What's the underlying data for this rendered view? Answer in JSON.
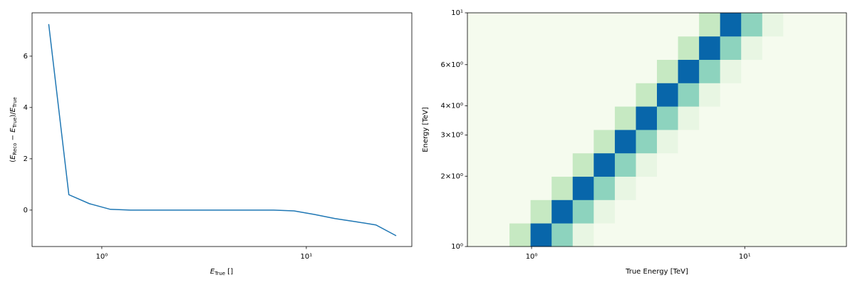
{
  "chart_data": [
    {
      "type": "line",
      "log_x": true,
      "x": [
        0.55,
        0.69,
        0.87,
        1.1,
        1.38,
        1.74,
        2.19,
        2.76,
        3.47,
        4.37,
        5.5,
        6.92,
        8.71,
        10.96,
        13.8,
        17.4,
        21.9,
        27.5
      ],
      "values": [
        7.25,
        0.6,
        0.25,
        0.03,
        0,
        0,
        0,
        0,
        0,
        0,
        0,
        0,
        -0.03,
        -0.17,
        -0.33,
        -0.45,
        -0.58,
        -1.0
      ],
      "color": "#1f77b4",
      "xlim": [
        0.456,
        32.8
      ],
      "xticks": [
        {
          "value": 1,
          "label": "10⁰"
        },
        {
          "value": 10,
          "label": "10¹"
        }
      ],
      "ylim": [
        -1.42,
        7.69
      ],
      "yticks": [
        0,
        2,
        4,
        6
      ],
      "xlabel": [
        "E",
        "True",
        " []"
      ],
      "ylabel": [
        "(",
        "E",
        "Reco",
        " − ",
        "E",
        "True",
        ")/",
        "E",
        "True"
      ]
    },
    {
      "type": "heatmap",
      "log_x": true,
      "log_y": true,
      "colormap": "GnBu",
      "zlim": [
        0,
        1
      ],
      "x_edges": [
        0.5,
        0.628,
        0.788,
        0.989,
        1.242,
        1.559,
        1.957,
        2.458,
        3.086,
        3.873,
        4.863,
        6.105,
        7.663,
        9.62,
        12.08,
        15.16,
        19.03,
        23.89,
        30.0
      ],
      "y_edges": [
        1,
        1.259,
        1.585,
        1.995,
        2.512,
        3.162,
        3.981,
        5.012,
        6.31,
        7.943,
        10
      ],
      "values": [
        [
          0.01,
          0.01,
          0.27,
          0.88,
          0.45,
          0.08,
          0.01,
          0.01,
          0.01,
          0.01,
          0.01,
          0.01,
          0.01,
          0.01,
          0.01,
          0.01,
          0.01,
          0.01
        ],
        [
          0.01,
          0.01,
          0.01,
          0.27,
          0.88,
          0.45,
          0.08,
          0.01,
          0.01,
          0.01,
          0.01,
          0.01,
          0.01,
          0.01,
          0.01,
          0.01,
          0.01,
          0.01
        ],
        [
          0.01,
          0.01,
          0.01,
          0.01,
          0.27,
          0.88,
          0.45,
          0.08,
          0.01,
          0.01,
          0.01,
          0.01,
          0.01,
          0.01,
          0.01,
          0.01,
          0.01,
          0.01
        ],
        [
          0.01,
          0.01,
          0.01,
          0.01,
          0.01,
          0.27,
          0.88,
          0.45,
          0.08,
          0.01,
          0.01,
          0.01,
          0.01,
          0.01,
          0.01,
          0.01,
          0.01,
          0.01
        ],
        [
          0.01,
          0.01,
          0.01,
          0.01,
          0.01,
          0.01,
          0.27,
          0.88,
          0.45,
          0.08,
          0.01,
          0.01,
          0.01,
          0.01,
          0.01,
          0.01,
          0.01,
          0.01
        ],
        [
          0.01,
          0.01,
          0.01,
          0.01,
          0.01,
          0.01,
          0.01,
          0.27,
          0.88,
          0.45,
          0.08,
          0.01,
          0.01,
          0.01,
          0.01,
          0.01,
          0.01,
          0.01
        ],
        [
          0.01,
          0.01,
          0.01,
          0.01,
          0.01,
          0.01,
          0.01,
          0.01,
          0.27,
          0.88,
          0.45,
          0.08,
          0.01,
          0.01,
          0.01,
          0.01,
          0.01,
          0.01
        ],
        [
          0.01,
          0.01,
          0.01,
          0.01,
          0.01,
          0.01,
          0.01,
          0.01,
          0.01,
          0.27,
          0.88,
          0.45,
          0.08,
          0.01,
          0.01,
          0.01,
          0.01,
          0.01
        ],
        [
          0.01,
          0.01,
          0.01,
          0.01,
          0.01,
          0.01,
          0.01,
          0.01,
          0.01,
          0.01,
          0.27,
          0.88,
          0.45,
          0.08,
          0.01,
          0.01,
          0.01,
          0.01
        ],
        [
          0.01,
          0.01,
          0.01,
          0.01,
          0.01,
          0.01,
          0.01,
          0.01,
          0.01,
          0.01,
          0.01,
          0.27,
          0.88,
          0.45,
          0.08,
          0.01,
          0.01,
          0.01
        ]
      ],
      "xlim": [
        0.5,
        30.0
      ],
      "xticks": [
        {
          "value": 1,
          "label": "10⁰"
        },
        {
          "value": 10,
          "label": "10¹"
        }
      ],
      "ylim": [
        1,
        10
      ],
      "yticks": [
        {
          "value": 1,
          "label": "10⁰"
        },
        {
          "value": 2,
          "label": "2×10⁰"
        },
        {
          "value": 3,
          "label": "3×10⁰"
        },
        {
          "value": 4,
          "label": "4×10⁰"
        },
        {
          "value": 6,
          "label": "6×10⁰"
        },
        {
          "value": 10,
          "label": "10¹"
        }
      ],
      "xlabel": "True Energy [TeV]",
      "ylabel": "Energy [TeV]"
    }
  ]
}
